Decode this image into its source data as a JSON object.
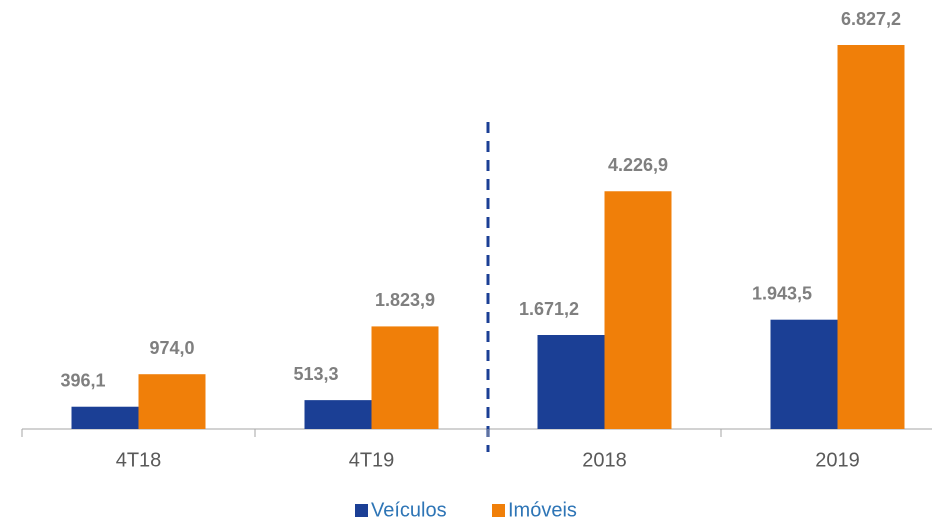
{
  "chart_data": {
    "type": "bar",
    "categories": [
      "4T18",
      "4T19",
      "2018",
      "2019"
    ],
    "series": [
      {
        "name": "Veículos",
        "color": "#1b3f95",
        "values": [
          396.1,
          513.3,
          1671.2,
          1943.5
        ],
        "value_labels": [
          "396,1",
          "513,3",
          "1.671,2",
          "1.943,5"
        ]
      },
      {
        "name": "Imóveis",
        "color": "#f07f09",
        "values": [
          974.0,
          1823.9,
          4226.9,
          6827.2
        ],
        "value_labels": [
          "974,0",
          "1.823,9",
          "4.226,9",
          "6.827,2"
        ]
      }
    ]
  }
}
